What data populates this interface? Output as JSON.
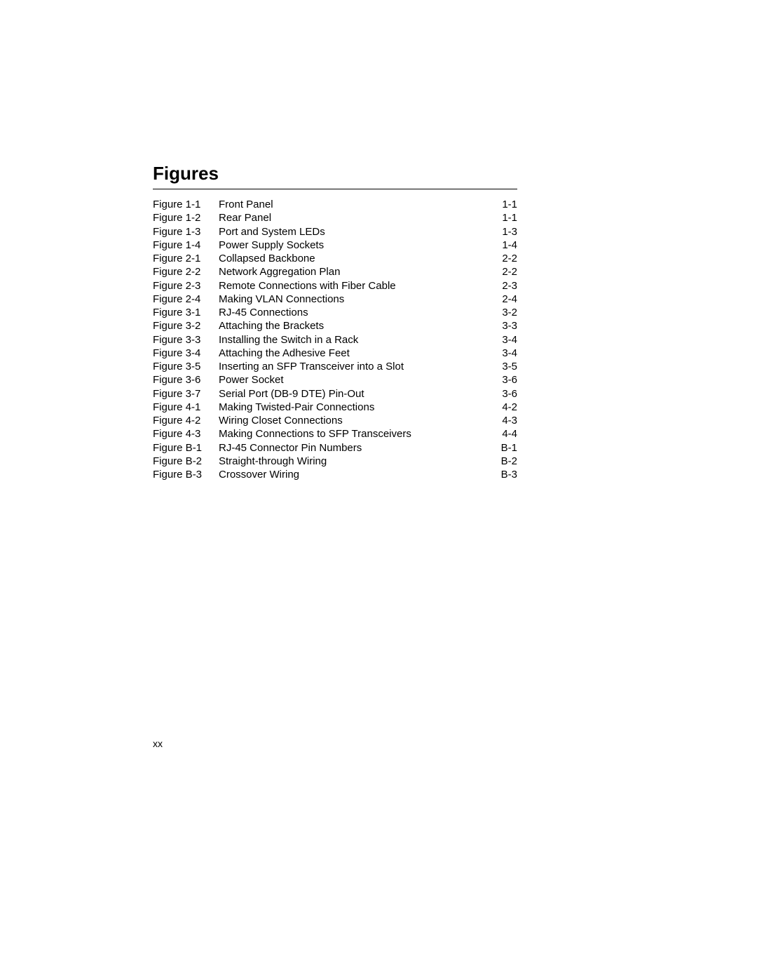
{
  "heading": "Figures",
  "page_number": "xx",
  "entries": [
    {
      "fig": "Figure 1-1",
      "title": "Front Panel",
      "page": "1-1"
    },
    {
      "fig": "Figure 1-2",
      "title": "Rear Panel",
      "page": "1-1"
    },
    {
      "fig": "Figure 1-3",
      "title": "Port and System LEDs",
      "page": "1-3"
    },
    {
      "fig": "Figure 1-4",
      "title": "Power Supply Sockets",
      "page": "1-4"
    },
    {
      "fig": "Figure 2-1",
      "title": "Collapsed Backbone",
      "page": "2-2"
    },
    {
      "fig": "Figure 2-2",
      "title": "Network Aggregation Plan",
      "page": "2-2"
    },
    {
      "fig": "Figure 2-3",
      "title": "Remote Connections with Fiber Cable",
      "page": "2-3"
    },
    {
      "fig": "Figure 2-4",
      "title": "Making VLAN Connections",
      "page": "2-4"
    },
    {
      "fig": "Figure 3-1",
      "title": "RJ-45 Connections",
      "page": "3-2"
    },
    {
      "fig": "Figure 3-2",
      "title": "Attaching the Brackets",
      "page": "3-3"
    },
    {
      "fig": "Figure 3-3",
      "title": "Installing the Switch in a Rack",
      "page": "3-4"
    },
    {
      "fig": "Figure 3-4",
      "title": "Attaching the Adhesive Feet",
      "page": "3-4"
    },
    {
      "fig": "Figure 3-5",
      "title": "Inserting an SFP Transceiver into a Slot",
      "page": "3-5"
    },
    {
      "fig": "Figure 3-6",
      "title": "Power Socket",
      "page": "3-6"
    },
    {
      "fig": "Figure 3-7",
      "title": "Serial Port (DB-9 DTE) Pin-Out",
      "page": "3-6"
    },
    {
      "fig": "Figure 4-1",
      "title": "Making Twisted-Pair Connections",
      "page": "4-2"
    },
    {
      "fig": "Figure 4-2",
      "title": "Wiring Closet Connections",
      "page": "4-3"
    },
    {
      "fig": "Figure 4-3",
      "title": "Making Connections to SFP Transceivers",
      "page": "4-4"
    },
    {
      "fig": "Figure B-1",
      "title": "RJ-45 Connector Pin Numbers",
      "page": "B-1"
    },
    {
      "fig": "Figure B-2",
      "title": "Straight-through Wiring",
      "page": "B-2"
    },
    {
      "fig": "Figure B-3",
      "title": "Crossover Wiring",
      "page": "B-3"
    }
  ]
}
